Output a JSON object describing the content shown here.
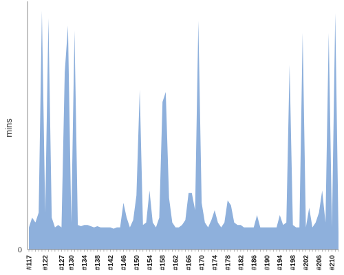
{
  "chart_data": {
    "type": "area",
    "ylabel": "mins",
    "xlabel": "",
    "ylim": [
      0,
      100
    ],
    "yticks": [
      "0"
    ],
    "grid": false,
    "fill_color": "#8eb0dc",
    "axis_color": "#888888",
    "x": [
      117,
      118,
      119,
      120,
      121,
      122,
      123,
      124,
      125,
      126,
      127,
      128,
      129,
      130,
      131,
      132,
      133,
      134,
      135,
      136,
      137,
      138,
      139,
      140,
      141,
      142,
      143,
      144,
      145,
      146,
      147,
      148,
      149,
      150,
      151,
      152,
      153,
      154,
      155,
      156,
      157,
      158,
      159,
      160,
      161,
      162,
      163,
      164,
      165,
      166,
      167,
      168,
      169,
      170,
      171,
      172,
      173,
      174,
      175,
      176,
      177,
      178,
      179,
      180,
      181,
      182,
      183,
      184,
      185,
      186,
      187,
      188,
      189,
      190,
      191,
      192,
      193,
      194,
      195,
      196,
      197,
      198,
      199,
      200,
      201,
      202,
      203,
      204,
      205,
      206,
      207,
      208,
      209,
      210,
      211,
      212
    ],
    "values": [
      9,
      13,
      11,
      15,
      97,
      15,
      94,
      13,
      9,
      10,
      9,
      72,
      91,
      11,
      89,
      10,
      9.5,
      10,
      10,
      9.5,
      9,
      9.5,
      9,
      9,
      9,
      9,
      8.5,
      9,
      9,
      19,
      13,
      9,
      12,
      22,
      65,
      10,
      11,
      24,
      11,
      9,
      13,
      60,
      64,
      21,
      11,
      9,
      9,
      10,
      12,
      23,
      23,
      16,
      93,
      19,
      11,
      9,
      12,
      16,
      11,
      9,
      11,
      20,
      18,
      11,
      10,
      10,
      9,
      9,
      9,
      9,
      14,
      9,
      9,
      9,
      9,
      9,
      9,
      14,
      10,
      11,
      75,
      10,
      9,
      9,
      88,
      9,
      17,
      9,
      11,
      15,
      24,
      11,
      88,
      9,
      96,
      7
    ]
  }
}
